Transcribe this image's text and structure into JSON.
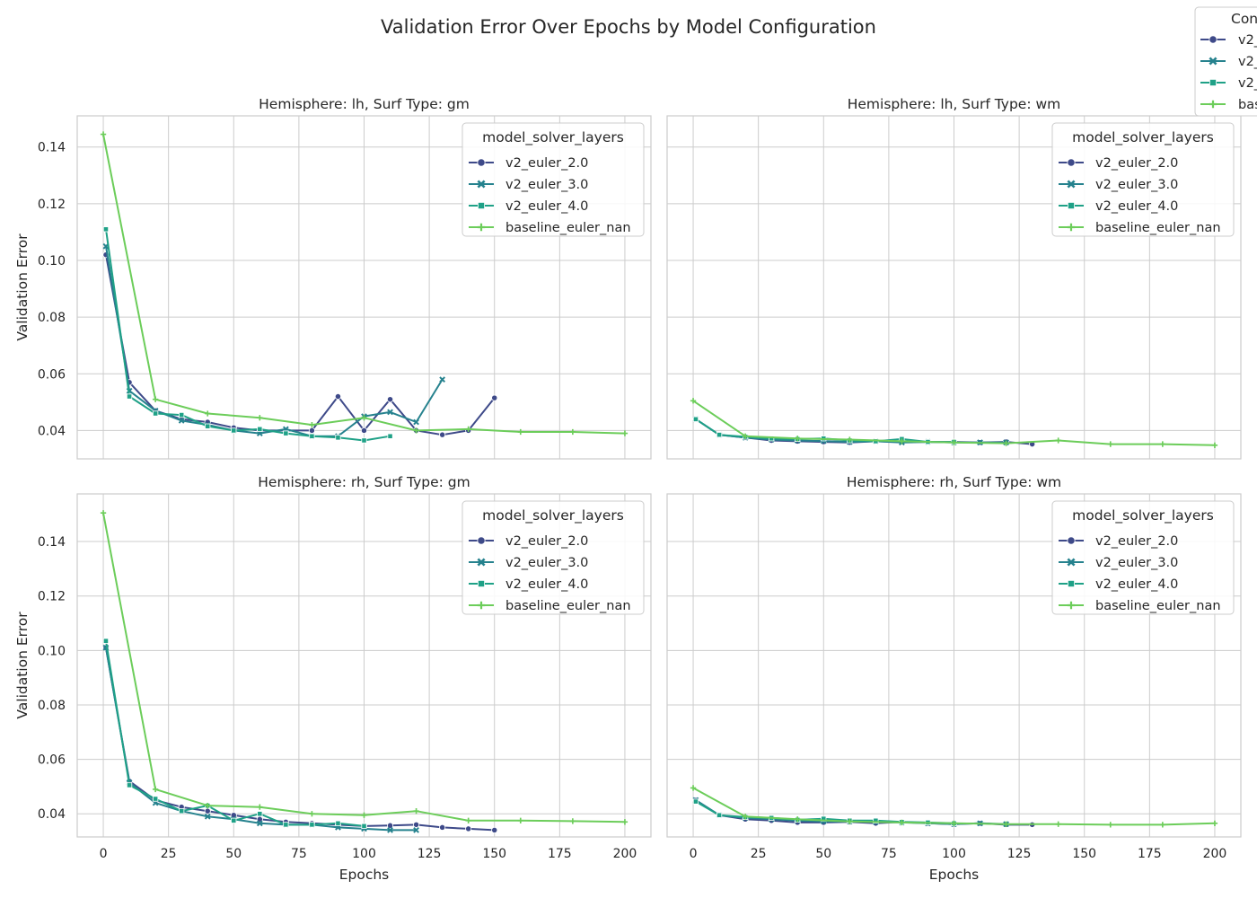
{
  "figure": {
    "title": "Validation Error Over Epochs by Model Configuration",
    "xlabel": "Epochs",
    "ylabel": "Validation Error"
  },
  "outer_legend": {
    "title": "Con",
    "entries": [
      "v2_",
      "v2_",
      "v2_",
      "bas"
    ]
  },
  "series_styles": [
    {
      "name": "v2_euler_2.0",
      "color": "#3e4a89",
      "marker": "circle"
    },
    {
      "name": "v2_euler_3.0",
      "color": "#26828e",
      "marker": "x"
    },
    {
      "name": "v2_euler_4.0",
      "color": "#1fa187",
      "marker": "square"
    },
    {
      "name": "baseline_euler_nan",
      "color": "#6ccd5a",
      "marker": "plus"
    }
  ],
  "chart_data": [
    {
      "type": "line",
      "title": "Hemisphere: lh, Surf Type: gm",
      "xlabel": "",
      "ylabel": "Validation Error",
      "xlim": [
        -10,
        210
      ],
      "ylim": [
        0.03,
        0.151
      ],
      "xticks": [
        "0",
        "25",
        "50",
        "75",
        "100",
        "125",
        "150",
        "175",
        "200"
      ],
      "yticks": [
        "0.04",
        "0.06",
        "0.08",
        "0.10",
        "0.12",
        "0.14"
      ],
      "show_xticklabels": false,
      "show_yticklabels": true,
      "grid": true,
      "legend": {
        "title": "model_solver_layers",
        "placement": "top-right",
        "entries": [
          "v2_euler_2.0",
          "v2_euler_3.0",
          "v2_euler_4.0",
          "baseline_euler_nan"
        ]
      },
      "series": [
        {
          "name": "v2_euler_2.0",
          "points": [
            [
              1,
              0.102
            ],
            [
              10,
              0.057
            ],
            [
              20,
              0.047
            ],
            [
              30,
              0.044
            ],
            [
              40,
              0.043
            ],
            [
              50,
              0.041
            ],
            [
              60,
              0.04
            ],
            [
              70,
              0.04
            ],
            [
              80,
              0.04
            ],
            [
              90,
              0.052
            ],
            [
              100,
              0.04
            ],
            [
              110,
              0.051
            ],
            [
              120,
              0.04
            ],
            [
              130,
              0.0385
            ],
            [
              140,
              0.04
            ],
            [
              150,
              0.0515
            ]
          ]
        },
        {
          "name": "v2_euler_3.0",
          "points": [
            [
              1,
              0.105
            ],
            [
              10,
              0.054
            ],
            [
              20,
              0.047
            ],
            [
              30,
              0.0435
            ],
            [
              40,
              0.042
            ],
            [
              50,
              0.04
            ],
            [
              60,
              0.039
            ],
            [
              70,
              0.0405
            ],
            [
              80,
              0.038
            ],
            [
              90,
              0.038
            ],
            [
              100,
              0.045
            ],
            [
              110,
              0.0465
            ],
            [
              120,
              0.043
            ],
            [
              130,
              0.058
            ]
          ]
        },
        {
          "name": "v2_euler_4.0",
          "points": [
            [
              1,
              0.111
            ],
            [
              10,
              0.052
            ],
            [
              20,
              0.046
            ],
            [
              30,
              0.0455
            ],
            [
              40,
              0.0415
            ],
            [
              50,
              0.04
            ],
            [
              60,
              0.0405
            ],
            [
              70,
              0.039
            ],
            [
              80,
              0.038
            ],
            [
              90,
              0.0375
            ],
            [
              100,
              0.0365
            ],
            [
              110,
              0.038
            ]
          ]
        },
        {
          "name": "baseline_euler_nan",
          "points": [
            [
              0,
              0.1445
            ],
            [
              20,
              0.051
            ],
            [
              40,
              0.046
            ],
            [
              60,
              0.0445
            ],
            [
              80,
              0.042
            ],
            [
              100,
              0.0445
            ],
            [
              120,
              0.04
            ],
            [
              140,
              0.0405
            ],
            [
              160,
              0.0395
            ],
            [
              180,
              0.0395
            ],
            [
              200,
              0.039
            ]
          ]
        }
      ]
    },
    {
      "type": "line",
      "title": "Hemisphere: lh, Surf Type: wm",
      "xlabel": "",
      "ylabel": "",
      "xlim": [
        -10,
        210
      ],
      "ylim": [
        0.03,
        0.151
      ],
      "xticks": [
        "0",
        "25",
        "50",
        "75",
        "100",
        "125",
        "150",
        "175",
        "200"
      ],
      "yticks": [
        "0.04",
        "0.06",
        "0.08",
        "0.10",
        "0.12",
        "0.14"
      ],
      "show_xticklabels": false,
      "show_yticklabels": false,
      "grid": true,
      "legend": {
        "title": "model_solver_layers",
        "placement": "top-right",
        "entries": [
          "v2_euler_2.0",
          "v2_euler_3.0",
          "v2_euler_4.0",
          "baseline_euler_nan"
        ]
      },
      "series": [
        {
          "name": "v2_euler_2.0",
          "points": [
            [
              1,
              0.044
            ],
            [
              10,
              0.0385
            ],
            [
              20,
              0.0375
            ],
            [
              30,
              0.0365
            ],
            [
              40,
              0.0362
            ],
            [
              50,
              0.036
            ],
            [
              60,
              0.0358
            ],
            [
              70,
              0.0362
            ],
            [
              80,
              0.036
            ],
            [
              90,
              0.036
            ],
            [
              100,
              0.036
            ],
            [
              110,
              0.0358
            ],
            [
              120,
              0.036
            ],
            [
              130,
              0.0352
            ]
          ]
        },
        {
          "name": "v2_euler_3.0",
          "points": [
            [
              1,
              0.044
            ],
            [
              10,
              0.0385
            ],
            [
              20,
              0.0375
            ],
            [
              30,
              0.0368
            ],
            [
              40,
              0.0365
            ],
            [
              50,
              0.0363
            ],
            [
              60,
              0.036
            ],
            [
              70,
              0.0362
            ],
            [
              80,
              0.0358
            ],
            [
              90,
              0.036
            ],
            [
              100,
              0.0358
            ],
            [
              110,
              0.0358
            ],
            [
              120,
              0.0358
            ]
          ]
        },
        {
          "name": "v2_euler_4.0",
          "points": [
            [
              1,
              0.044
            ],
            [
              10,
              0.0385
            ],
            [
              20,
              0.0378
            ],
            [
              30,
              0.0372
            ],
            [
              40,
              0.037
            ],
            [
              50,
              0.0372
            ],
            [
              60,
              0.0365
            ],
            [
              70,
              0.0362
            ],
            [
              80,
              0.037
            ],
            [
              90,
              0.036
            ],
            [
              100,
              0.036
            ]
          ]
        },
        {
          "name": "baseline_euler_nan",
          "points": [
            [
              0,
              0.0505
            ],
            [
              20,
              0.038
            ],
            [
              40,
              0.0372
            ],
            [
              60,
              0.0368
            ],
            [
              80,
              0.0362
            ],
            [
              100,
              0.0358
            ],
            [
              120,
              0.0355
            ],
            [
              140,
              0.0365
            ],
            [
              160,
              0.0352
            ],
            [
              180,
              0.0352
            ],
            [
              200,
              0.0348
            ]
          ]
        }
      ]
    },
    {
      "type": "line",
      "title": "Hemisphere: rh, Surf Type: gm",
      "xlabel": "Epochs",
      "ylabel": "Validation Error",
      "xlim": [
        -10,
        210
      ],
      "ylim": [
        0.0315,
        0.1575
      ],
      "xticks": [
        "0",
        "25",
        "50",
        "75",
        "100",
        "125",
        "150",
        "175",
        "200"
      ],
      "yticks": [
        "0.04",
        "0.06",
        "0.08",
        "0.10",
        "0.12",
        "0.14"
      ],
      "show_xticklabels": true,
      "show_yticklabels": true,
      "grid": true,
      "legend": {
        "title": "model_solver_layers",
        "placement": "top-right",
        "entries": [
          "v2_euler_2.0",
          "v2_euler_3.0",
          "v2_euler_4.0",
          "baseline_euler_nan"
        ]
      },
      "series": [
        {
          "name": "v2_euler_2.0",
          "points": [
            [
              1,
              0.101
            ],
            [
              10,
              0.052
            ],
            [
              20,
              0.045
            ],
            [
              30,
              0.0425
            ],
            [
              40,
              0.041
            ],
            [
              50,
              0.0395
            ],
            [
              60,
              0.038
            ],
            [
              70,
              0.037
            ],
            [
              80,
              0.0365
            ],
            [
              90,
              0.036
            ],
            [
              100,
              0.0355
            ],
            [
              110,
              0.0357
            ],
            [
              120,
              0.036
            ],
            [
              130,
              0.035
            ],
            [
              140,
              0.0345
            ],
            [
              150,
              0.034
            ]
          ]
        },
        {
          "name": "v2_euler_3.0",
          "points": [
            [
              1,
              0.101
            ],
            [
              10,
              0.0515
            ],
            [
              20,
              0.044
            ],
            [
              30,
              0.041
            ],
            [
              40,
              0.039
            ],
            [
              50,
              0.038
            ],
            [
              60,
              0.0365
            ],
            [
              70,
              0.036
            ],
            [
              80,
              0.036
            ],
            [
              90,
              0.035
            ],
            [
              100,
              0.0345
            ],
            [
              110,
              0.034
            ],
            [
              120,
              0.034
            ]
          ]
        },
        {
          "name": "v2_euler_4.0",
          "points": [
            [
              1,
              0.1035
            ],
            [
              10,
              0.0505
            ],
            [
              20,
              0.0455
            ],
            [
              30,
              0.041
            ],
            [
              40,
              0.043
            ],
            [
              50,
              0.0375
            ],
            [
              60,
              0.04
            ],
            [
              70,
              0.036
            ],
            [
              80,
              0.036
            ],
            [
              90,
              0.0365
            ],
            [
              100,
              0.0355
            ]
          ]
        },
        {
          "name": "baseline_euler_nan",
          "points": [
            [
              0,
              0.1505
            ],
            [
              20,
              0.049
            ],
            [
              40,
              0.043
            ],
            [
              60,
              0.0425
            ],
            [
              80,
              0.04
            ],
            [
              100,
              0.0395
            ],
            [
              120,
              0.041
            ],
            [
              140,
              0.0375
            ],
            [
              160,
              0.0375
            ],
            [
              180,
              0.0373
            ],
            [
              200,
              0.037
            ]
          ]
        }
      ]
    },
    {
      "type": "line",
      "title": "Hemisphere: rh, Surf Type: wm",
      "xlabel": "Epochs",
      "ylabel": "",
      "xlim": [
        -10,
        210
      ],
      "ylim": [
        0.0315,
        0.1575
      ],
      "xticks": [
        "0",
        "25",
        "50",
        "75",
        "100",
        "125",
        "150",
        "175",
        "200"
      ],
      "yticks": [
        "0.04",
        "0.06",
        "0.08",
        "0.10",
        "0.12",
        "0.14"
      ],
      "show_xticklabels": true,
      "show_yticklabels": false,
      "grid": true,
      "legend": {
        "title": "model_solver_layers",
        "placement": "top-right",
        "entries": [
          "v2_euler_2.0",
          "v2_euler_3.0",
          "v2_euler_4.0",
          "baseline_euler_nan"
        ]
      },
      "series": [
        {
          "name": "v2_euler_2.0",
          "points": [
            [
              1,
              0.045
            ],
            [
              10,
              0.0395
            ],
            [
              20,
              0.038
            ],
            [
              30,
              0.0375
            ],
            [
              40,
              0.0368
            ],
            [
              50,
              0.0368
            ],
            [
              60,
              0.037
            ],
            [
              70,
              0.0365
            ],
            [
              80,
              0.037
            ],
            [
              90,
              0.0365
            ],
            [
              100,
              0.0362
            ],
            [
              110,
              0.0365
            ],
            [
              120,
              0.036
            ],
            [
              130,
              0.036
            ]
          ]
        },
        {
          "name": "v2_euler_3.0",
          "points": [
            [
              1,
              0.045
            ],
            [
              10,
              0.0395
            ],
            [
              20,
              0.0385
            ],
            [
              30,
              0.038
            ],
            [
              40,
              0.0375
            ],
            [
              50,
              0.0372
            ],
            [
              60,
              0.0372
            ],
            [
              70,
              0.037
            ],
            [
              80,
              0.0368
            ],
            [
              90,
              0.0365
            ],
            [
              100,
              0.0362
            ],
            [
              110,
              0.0365
            ],
            [
              120,
              0.0362
            ]
          ]
        },
        {
          "name": "v2_euler_4.0",
          "points": [
            [
              1,
              0.0445
            ],
            [
              10,
              0.0395
            ],
            [
              20,
              0.0388
            ],
            [
              30,
              0.0385
            ],
            [
              40,
              0.0378
            ],
            [
              50,
              0.0382
            ],
            [
              60,
              0.0375
            ],
            [
              70,
              0.0375
            ],
            [
              80,
              0.037
            ],
            [
              90,
              0.0368
            ],
            [
              100,
              0.0365
            ]
          ]
        },
        {
          "name": "baseline_euler_nan",
          "points": [
            [
              0,
              0.0495
            ],
            [
              20,
              0.039
            ],
            [
              40,
              0.038
            ],
            [
              60,
              0.0372
            ],
            [
              80,
              0.0368
            ],
            [
              100,
              0.0365
            ],
            [
              120,
              0.0362
            ],
            [
              140,
              0.0362
            ],
            [
              160,
              0.036
            ],
            [
              180,
              0.036
            ],
            [
              200,
              0.0365
            ]
          ]
        }
      ]
    }
  ]
}
